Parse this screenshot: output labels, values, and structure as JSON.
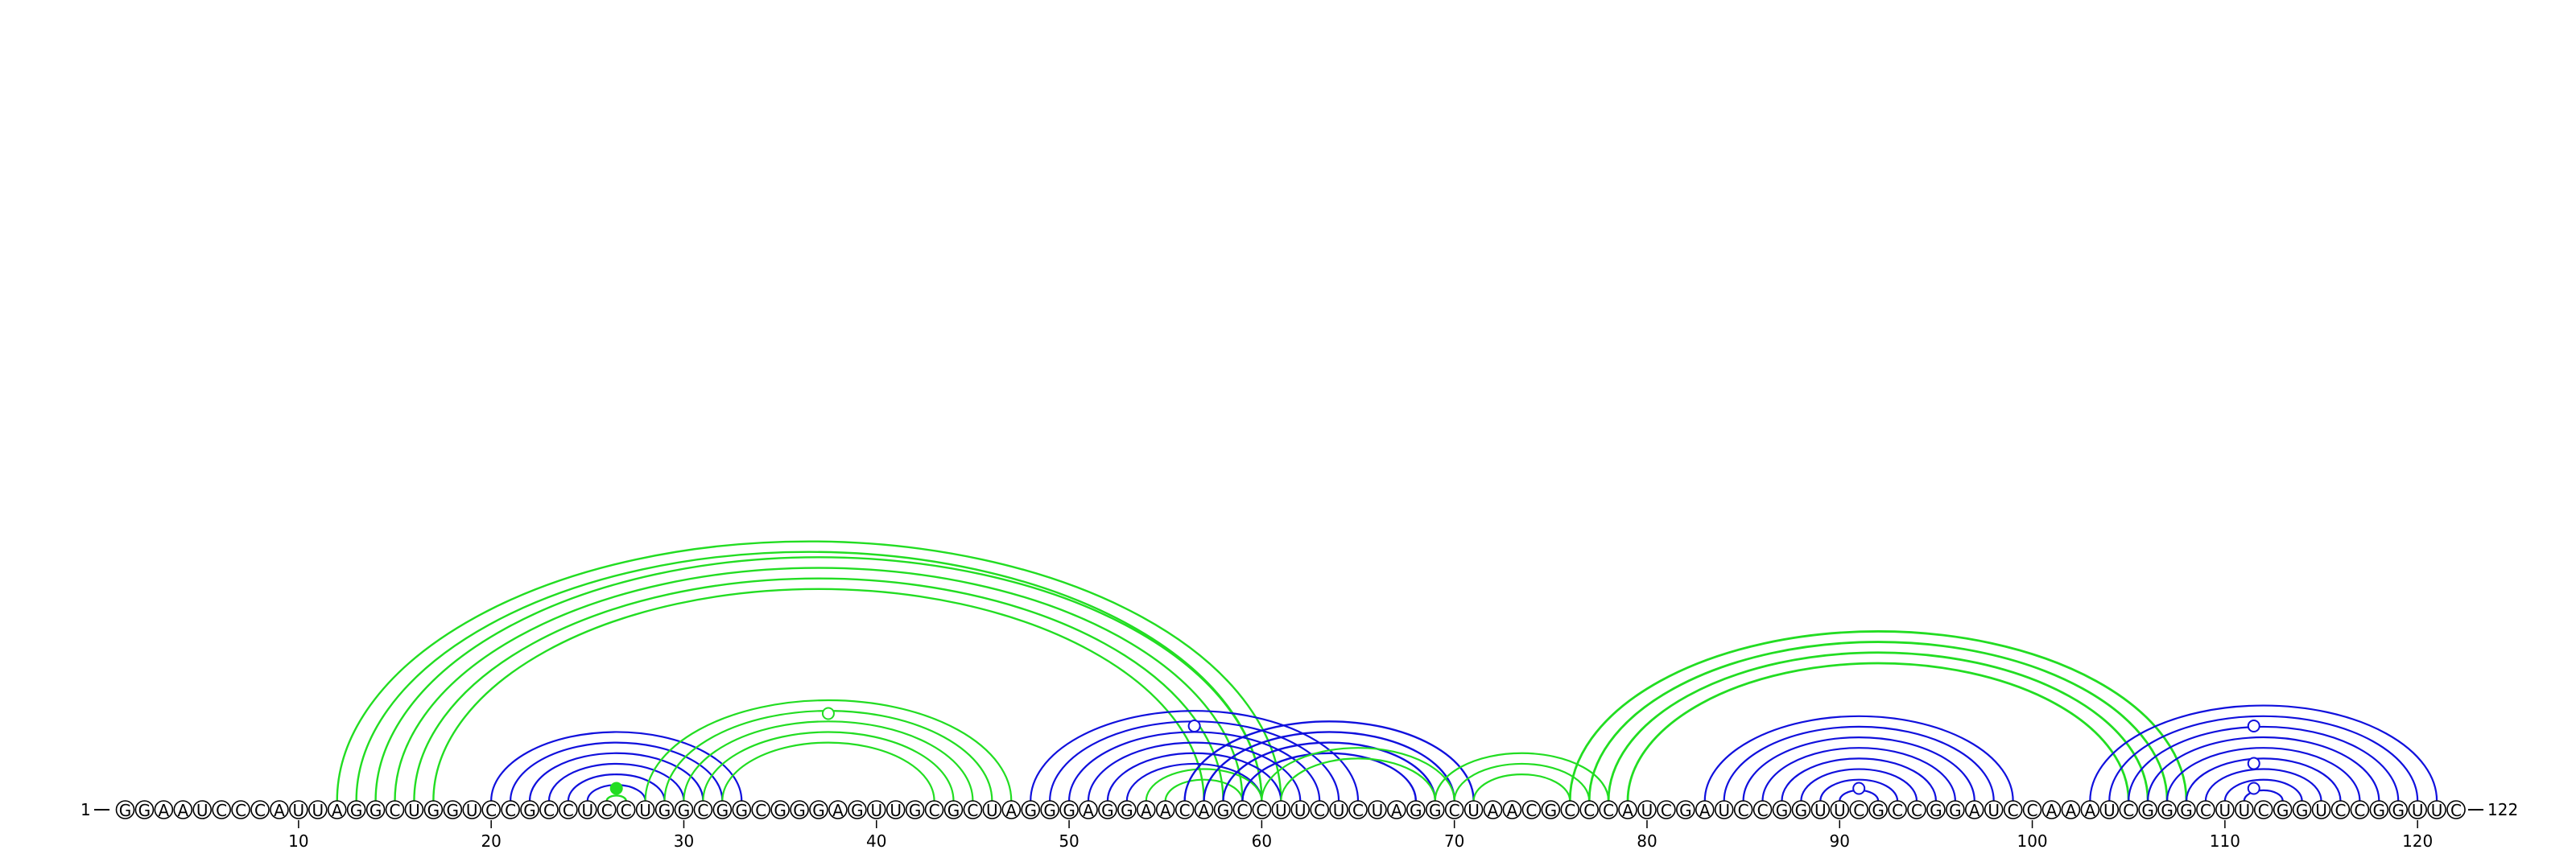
{
  "diagram": {
    "type": "rna-arc-diagram",
    "sequence": "GGAAUCCCAUUAGGCUGGUCCGCCUCCUGGCGGCGGGAGUUGCGCUAGGGAGGAACAGCCUUCUCUAGGCUAACGCCCAUCGAUCCGGUUCGCCGGAUCCAAAUCGGGCUUCGGUCCGGUUC",
    "start_label": "1",
    "end_label": "122",
    "tick_labels": [
      "10",
      "20",
      "30",
      "40",
      "50",
      "60",
      "70",
      "80",
      "90",
      "100",
      "110",
      "120"
    ],
    "colors": {
      "green": "#22dd22",
      "blue": "#1010dd",
      "text": "#000000"
    },
    "arc_groups": [
      {
        "color": "green",
        "width": 2.4,
        "pairs": [
          [
            12,
            61
          ],
          [
            13,
            60
          ],
          [
            14,
            60
          ],
          [
            15,
            59
          ],
          [
            16,
            58
          ],
          [
            17,
            57
          ]
        ]
      },
      {
        "color": "blue",
        "width": 2.2,
        "pairs": [
          [
            20,
            33
          ],
          [
            21,
            32
          ],
          [
            22,
            31
          ],
          [
            23,
            30
          ],
          [
            24,
            29
          ],
          [
            25,
            28
          ]
        ]
      },
      {
        "color": "green",
        "width": 2.4,
        "pairs": [
          [
            26,
            27
          ]
        ]
      },
      {
        "color": "green",
        "width": 2.2,
        "pairs": [
          [
            28,
            47
          ],
          [
            29,
            46
          ],
          [
            30,
            45
          ],
          [
            31,
            44
          ],
          [
            32,
            43
          ]
        ]
      },
      {
        "color": "blue",
        "width": 2.2,
        "pairs": [
          [
            48,
            65
          ],
          [
            49,
            64
          ],
          [
            50,
            63
          ],
          [
            51,
            62
          ],
          [
            52,
            61
          ],
          [
            53,
            60
          ]
        ]
      },
      {
        "color": "green",
        "width": 2.2,
        "pairs": [
          [
            54,
            60
          ],
          [
            55,
            59
          ]
        ]
      },
      {
        "color": "blue",
        "width": 2.4,
        "pairs": [
          [
            56,
            71
          ],
          [
            57,
            70
          ],
          [
            58,
            69
          ],
          [
            59,
            68
          ]
        ]
      },
      {
        "color": "green",
        "width": 2.2,
        "pairs": [
          [
            60,
            70
          ],
          [
            61,
            69
          ]
        ]
      },
      {
        "color": "green",
        "width": 2.2,
        "pairs": [
          [
            69,
            78
          ],
          [
            70,
            77
          ],
          [
            71,
            76
          ]
        ]
      },
      {
        "color": "green",
        "width": 2.8,
        "pairs": [
          [
            76,
            108
          ],
          [
            77,
            107
          ],
          [
            78,
            106
          ],
          [
            79,
            105
          ]
        ]
      },
      {
        "color": "blue",
        "width": 2.2,
        "pairs": [
          [
            83,
            99
          ],
          [
            84,
            98
          ],
          [
            85,
            97
          ],
          [
            86,
            96
          ],
          [
            87,
            95
          ],
          [
            88,
            94
          ],
          [
            89,
            93
          ],
          [
            90,
            92
          ]
        ]
      },
      {
        "color": "blue",
        "width": 2.2,
        "pairs": [
          [
            103,
            121
          ],
          [
            104,
            120
          ],
          [
            105,
            119
          ],
          [
            106,
            118
          ],
          [
            107,
            117
          ],
          [
            108,
            116
          ],
          [
            109,
            115
          ],
          [
            110,
            114
          ],
          [
            111,
            113
          ]
        ]
      }
    ],
    "markers": [
      {
        "pos": 26.5,
        "level": 1,
        "color": "green",
        "filled": true
      },
      {
        "pos": 37.5,
        "level": 7,
        "color": "green",
        "filled": false
      },
      {
        "pos": 56.5,
        "level": 6,
        "color": "blue",
        "filled": false
      },
      {
        "pos": 91.0,
        "level": 1,
        "color": "blue",
        "filled": false
      },
      {
        "pos": 111.5,
        "level": 6,
        "color": "blue",
        "filled": false
      },
      {
        "pos": 111.5,
        "level": 3,
        "color": "blue",
        "filled": false
      },
      {
        "pos": 111.5,
        "level": 1,
        "color": "blue",
        "filled": false
      }
    ]
  }
}
